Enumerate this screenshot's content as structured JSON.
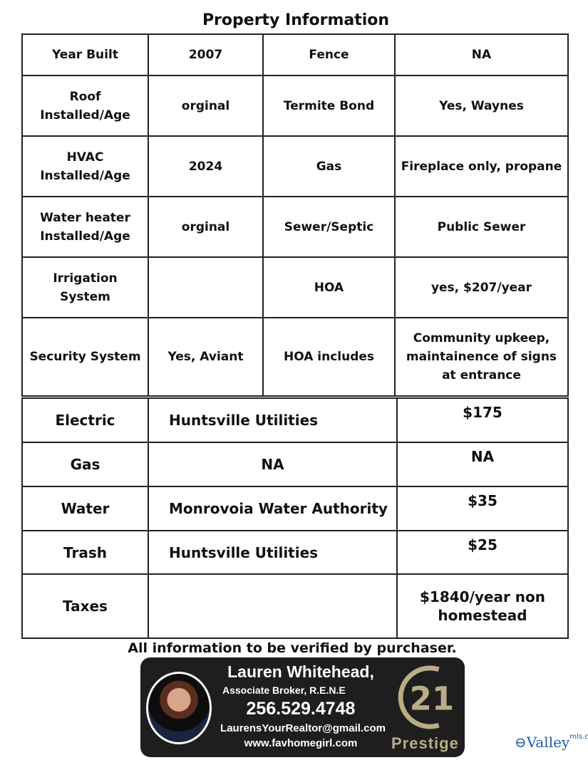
{
  "title": "Property Information",
  "property_rows": [
    [
      "Year Built",
      "2007",
      "Fence",
      "NA"
    ],
    [
      "Roof Installed/Age",
      "orginal",
      "Termite Bond",
      "Yes, Waynes"
    ],
    [
      "HVAC Installed/Age",
      "2024",
      "Gas",
      "Fireplace only, propane"
    ],
    [
      "Water heater Installed/Age",
      "orginal",
      "Sewer/Septic",
      "Public Sewer"
    ],
    [
      "Irrigation System",
      "",
      "HOA",
      "yes, $207/year"
    ],
    [
      "Security System",
      "Yes, Aviant",
      "HOA includes",
      "Community upkeep, maintainence of signs at entrance"
    ]
  ],
  "utility_rows": [
    [
      "Electric",
      "Huntsville Utilities",
      "$175"
    ],
    [
      "Gas",
      "NA",
      "NA"
    ],
    [
      "Water",
      "Monrovoia Water Authority",
      "$35"
    ],
    [
      "Trash",
      "Huntsville Utilities",
      "$25"
    ],
    [
      "Taxes",
      "",
      "$1840/year non homestead"
    ]
  ],
  "note": "All information to be verified by purchaser.",
  "agent": {
    "name": "Lauren Whitehead,",
    "role": "Associate Broker, R.E.N.E",
    "phone": "256.529.4748",
    "email": "LaurensYourRealtor@gmail.com",
    "website": "www.favhomegirl.com",
    "brand_logo_text": "21",
    "brand_sub": "Prestige",
    "brand_color": "#b9ac87"
  },
  "watermark": {
    "text": "Valley",
    "suffix": "mls.com",
    "color": "#1d5fa6"
  }
}
